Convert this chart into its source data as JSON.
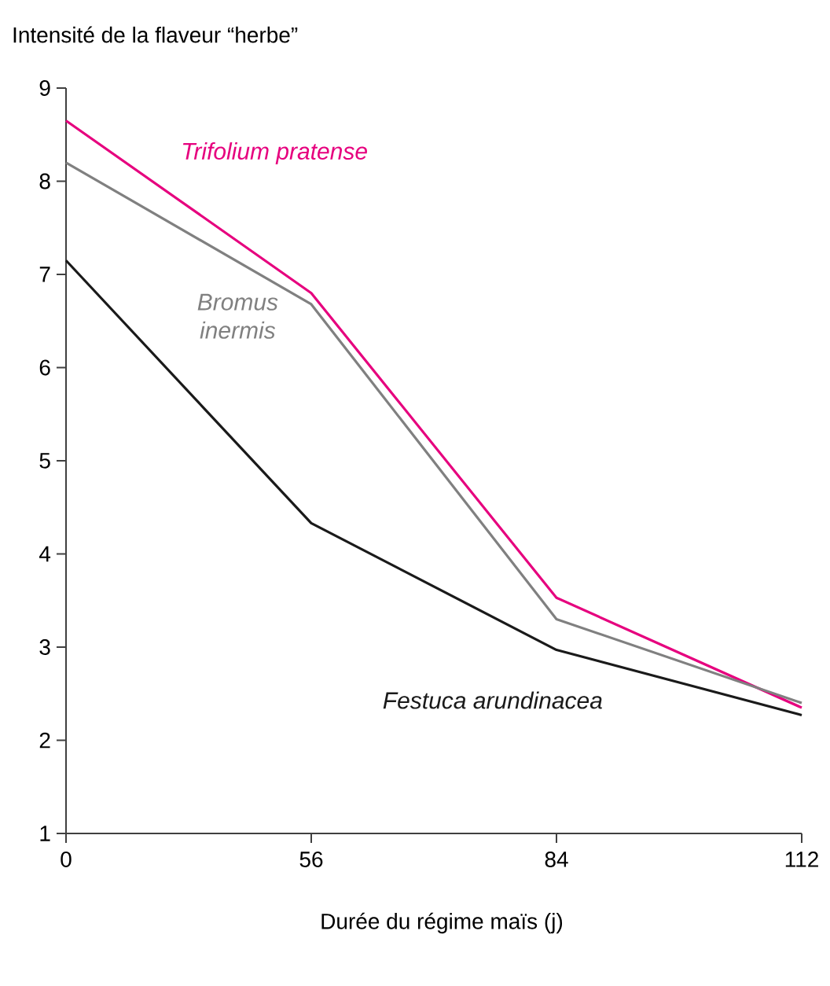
{
  "chart_data": {
    "type": "line",
    "ylabel": "Intensité de la flaveur “herbe”",
    "xlabel": "Durée du régime maïs (j)",
    "categories": [
      "0",
      "56",
      "84",
      "112"
    ],
    "ylim": [
      1,
      9
    ],
    "yticks": [
      1,
      2,
      3,
      4,
      5,
      6,
      7,
      8,
      9
    ],
    "grid": false,
    "legend": false,
    "marker": "none",
    "line_style": "solid",
    "series": [
      {
        "name": "*Trifolium pratense*",
        "color": "#e6007e",
        "values": [
          8.65,
          6.8,
          3.53,
          2.35
        ]
      },
      {
        "name": "*Bromus inermis*",
        "color": "#808080",
        "values": [
          8.2,
          6.68,
          3.3,
          2.4
        ]
      },
      {
        "name": "*Festuca arundinacea*",
        "color": "#1a1a1a",
        "values": [
          7.15,
          4.33,
          2.97,
          2.27
        ]
      }
    ]
  }
}
